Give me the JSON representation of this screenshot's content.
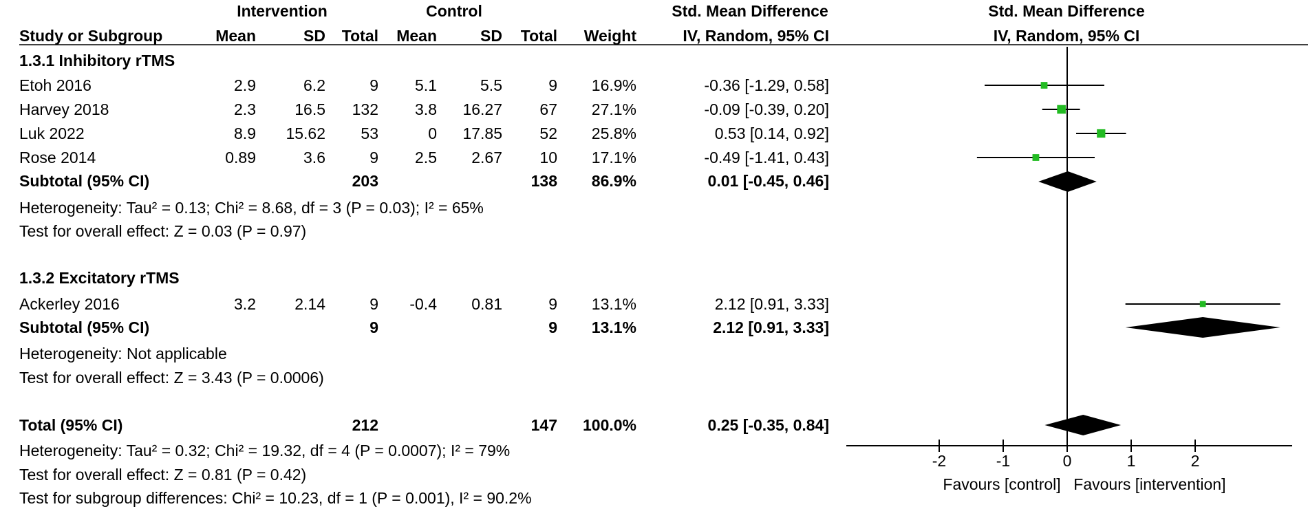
{
  "header": {
    "group1": "Intervention",
    "group2": "Control",
    "smd_table": "Std. Mean Difference",
    "smd_plot": "Std. Mean Difference",
    "method_table": "IV, Random, 95% CI",
    "method_plot": "IV, Random, 95% CI",
    "cols": {
      "study": "Study or Subgroup",
      "mean1": "Mean",
      "sd1": "SD",
      "total1": "Total",
      "mean2": "Mean",
      "sd2": "SD",
      "total2": "Total",
      "weight": "Weight"
    }
  },
  "subgroups": [
    {
      "title": "1.3.1 Inhibitory rTMS",
      "studies": [
        {
          "name": "Etoh 2016",
          "mean1": "2.9",
          "sd1": "6.2",
          "total1": "9",
          "mean2": "5.1",
          "sd2": "5.5",
          "total2": "9",
          "weight": "16.9%",
          "ci": "-0.36 [-1.29, 0.58]"
        },
        {
          "name": "Harvey 2018",
          "mean1": "2.3",
          "sd1": "16.5",
          "total1": "132",
          "mean2": "3.8",
          "sd2": "16.27",
          "total2": "67",
          "weight": "27.1%",
          "ci": "-0.09 [-0.39, 0.20]"
        },
        {
          "name": "Luk 2022",
          "mean1": "8.9",
          "sd1": "15.62",
          "total1": "53",
          "mean2": "0",
          "sd2": "17.85",
          "total2": "52",
          "weight": "25.8%",
          "ci": "0.53 [0.14, 0.92]"
        },
        {
          "name": "Rose 2014",
          "mean1": "0.89",
          "sd1": "3.6",
          "total1": "9",
          "mean2": "2.5",
          "sd2": "2.67",
          "total2": "10",
          "weight": "17.1%",
          "ci": "-0.49 [-1.41, 0.43]"
        }
      ],
      "subtotal": {
        "label": "Subtotal (95% CI)",
        "total1": "203",
        "total2": "138",
        "weight": "86.9%",
        "ci": "0.01 [-0.45, 0.46]"
      },
      "heterogeneity": "Heterogeneity: Tau² = 0.13; Chi² = 8.68, df = 3 (P = 0.03); I² = 65%",
      "overall": "Test for overall effect: Z = 0.03 (P = 0.97)"
    },
    {
      "title": "1.3.2 Excitatory rTMS",
      "studies": [
        {
          "name": "Ackerley 2016",
          "mean1": "3.2",
          "sd1": "2.14",
          "total1": "9",
          "mean2": "-0.4",
          "sd2": "0.81",
          "total2": "9",
          "weight": "13.1%",
          "ci": "2.12 [0.91, 3.33]"
        }
      ],
      "subtotal": {
        "label": "Subtotal (95% CI)",
        "total1": "9",
        "total2": "9",
        "weight": "13.1%",
        "ci": "2.12 [0.91, 3.33]"
      },
      "heterogeneity": "Heterogeneity: Not applicable",
      "overall": "Test for overall effect: Z = 3.43 (P = 0.0006)"
    }
  ],
  "total": {
    "label": "Total (95% CI)",
    "total1": "212",
    "total2": "147",
    "weight": "100.0%",
    "ci": "0.25 [-0.35, 0.84]",
    "heterogeneity": "Heterogeneity: Tau² = 0.32; Chi² = 19.32, df = 4 (P = 0.0007); I² = 79%",
    "overall": "Test for overall effect: Z = 0.81 (P = 0.42)",
    "subgroup_diff": "Test for subgroup differences: Chi² = 10.23, df = 1 (P = 0.001), I² = 90.2%"
  },
  "axis": {
    "ticks": [
      -2,
      -1,
      0,
      1,
      2
    ],
    "tick_labels": [
      "-2",
      "-1",
      "0",
      "1",
      "2"
    ],
    "favours_left": "Favours [control]",
    "favours_right": "Favours [intervention]"
  },
  "colors": {
    "square": "#22bb22",
    "diamond": "#000000",
    "line": "#000000"
  },
  "chart_data": {
    "type": "forest",
    "xlim": [
      -2,
      3.4
    ],
    "studies": [
      {
        "name": "Etoh 2016",
        "estimate": -0.36,
        "lower": -1.29,
        "upper": 0.58,
        "weight": 16.9
      },
      {
        "name": "Harvey 2018",
        "estimate": -0.09,
        "lower": -0.39,
        "upper": 0.2,
        "weight": 27.1
      },
      {
        "name": "Luk 2022",
        "estimate": 0.53,
        "lower": 0.14,
        "upper": 0.92,
        "weight": 25.8
      },
      {
        "name": "Rose 2014",
        "estimate": -0.49,
        "lower": -1.41,
        "upper": 0.43,
        "weight": 17.1
      },
      {
        "name": "Ackerley 2016",
        "estimate": 2.12,
        "lower": 0.91,
        "upper": 3.33,
        "weight": 13.1
      }
    ],
    "pooled": [
      {
        "label": "Subtotal (95% CI)",
        "estimate": 0.01,
        "lower": -0.45,
        "upper": 0.46
      },
      {
        "label": "Subtotal (95% CI)",
        "estimate": 2.12,
        "lower": 0.91,
        "upper": 3.33
      },
      {
        "label": "Total (95% CI)",
        "estimate": 0.25,
        "lower": -0.35,
        "upper": 0.84
      }
    ]
  }
}
